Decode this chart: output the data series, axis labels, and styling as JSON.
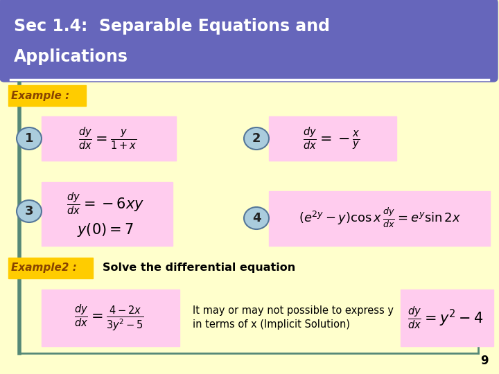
{
  "title_line1": "Sec 1.4:  Separable Equations and",
  "title_line2": "Applications",
  "title_bg": "#6666bb",
  "title_color": "#ffffff",
  "bg_color": "#ffffcc",
  "pink_color": "#ffccee",
  "gold_color": "#ffcc00",
  "gold_text_color": "#884400",
  "circle_face": "#aaccdd",
  "circle_edge": "#557799",
  "teal_line": "#558877",
  "example1_label": "Example :",
  "example2_label": "Example2 :",
  "example2_text": "Solve the differential equation",
  "implicit_text": "It may or may not possible to express y\nin terms of x (Implicit Solution)",
  "page_num": "9"
}
